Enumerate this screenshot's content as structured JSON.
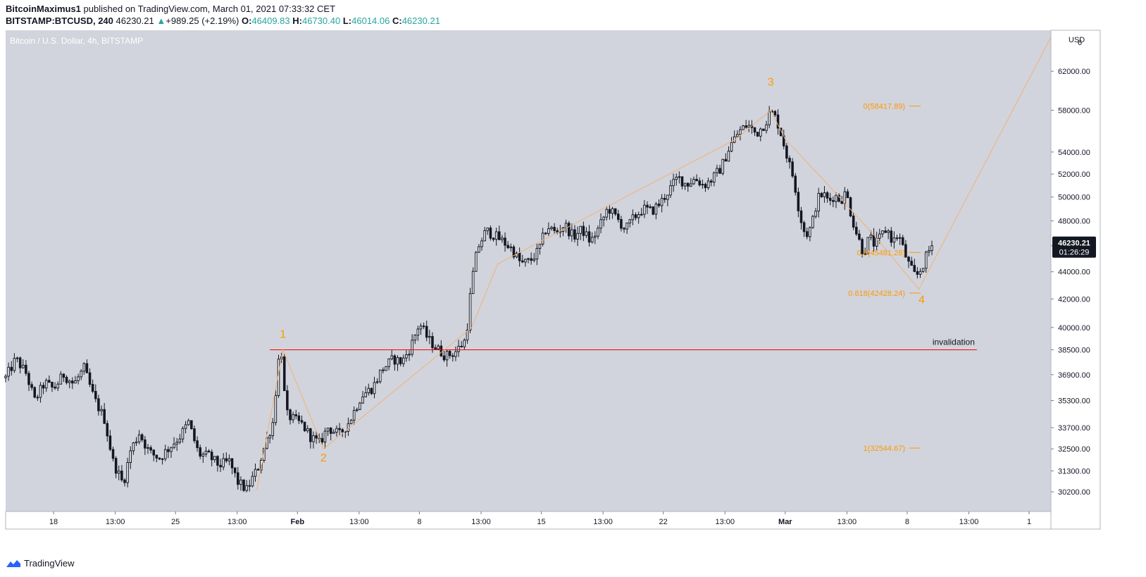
{
  "header": {
    "author": "BitcoinMaximus1",
    "published_text": "published on TradingView.com, March 01, 2021 07:33:32 CET",
    "symbol": "BITSTAMP:BTCUSD, 240",
    "last": "46230.21",
    "change": "+989.25 (+2.19%)",
    "open_label": "O:",
    "open": "46409.83",
    "high_label": "H:",
    "high": "46730.40",
    "low_label": "L:",
    "low": "46014.06",
    "close_label": "C:",
    "close": "46230.21"
  },
  "footer": {
    "brand": "TradingView",
    "icon": "tradingview-logo-icon"
  },
  "colors": {
    "plot_bg": "#d1d4dc",
    "axis_bg": "#ffffff",
    "orange": "#ff9800",
    "red": "#ff0000",
    "candle": "#131722",
    "price_tag_bg": "#131722"
  },
  "chart_data": {
    "type": "candlestick",
    "title": "Bitcoin / U.S. Dollar, 4h, BITSTAMP",
    "scale": "log",
    "currency_label": "USD",
    "ylim": [
      29200,
      66500
    ],
    "y_ticks": [
      30200,
      31300,
      32500,
      33700,
      35300,
      36900,
      38500,
      40000,
      42000,
      44000,
      46000,
      48000,
      50000,
      52000,
      54000,
      58000,
      62000
    ],
    "y_tick_labels": [
      "30200.00",
      "31300.00",
      "32500.00",
      "33700.00",
      "35300.00",
      "36900.00",
      "38500.00",
      "40000.00",
      "42000.00",
      "44000.00",
      "46000.00",
      "48000.00",
      "50000.00",
      "52000.00",
      "54000.00",
      "58000.00",
      "62000.00"
    ],
    "y_top_partial_label": "6",
    "x_start": "2021-01-15 06:00",
    "x_end": "2021-03-16 06:00",
    "x_ticks": [
      {
        "t": "2021-01-18 00:00",
        "label": "18"
      },
      {
        "t": "2021-01-21 13:00",
        "label": "13:00"
      },
      {
        "t": "2021-01-25 00:00",
        "label": "25"
      },
      {
        "t": "2021-01-28 13:00",
        "label": "13:00"
      },
      {
        "t": "2021-02-01 00:00",
        "label": "Feb"
      },
      {
        "t": "2021-02-04 13:00",
        "label": "13:00"
      },
      {
        "t": "2021-02-08 00:00",
        "label": "8"
      },
      {
        "t": "2021-02-11 13:00",
        "label": "13:00"
      },
      {
        "t": "2021-02-15 00:00",
        "label": "15"
      },
      {
        "t": "2021-02-18 13:00",
        "label": "13:00"
      },
      {
        "t": "2021-02-22 00:00",
        "label": "22"
      },
      {
        "t": "2021-02-25 13:00",
        "label": "13:00"
      },
      {
        "t": "2021-03-01 00:00",
        "label": "Mar"
      },
      {
        "t": "2021-03-04 13:00",
        "label": "13:00"
      },
      {
        "t": "2021-03-08 00:00",
        "label": "8"
      },
      {
        "t": "2021-03-11 13:00",
        "label": "13:00"
      },
      {
        "t": "2021-03-15 00:00",
        "label": "1"
      }
    ],
    "price_path": [
      [
        "2021-01-15 06:00",
        36700
      ],
      [
        "2021-01-15 20:00",
        37900
      ],
      [
        "2021-01-16 10:00",
        37000
      ],
      [
        "2021-01-16 22:00",
        35300
      ],
      [
        "2021-01-17 12:00",
        36400
      ],
      [
        "2021-01-18 00:00",
        36000
      ],
      [
        "2021-01-18 14:00",
        36900
      ],
      [
        "2021-01-19 04:00",
        36300
      ],
      [
        "2021-01-19 18:00",
        37300
      ],
      [
        "2021-01-20 08:00",
        35400
      ],
      [
        "2021-01-20 22:00",
        34200
      ],
      [
        "2021-01-21 10:00",
        31800
      ],
      [
        "2021-01-22 00:00",
        30600
      ],
      [
        "2021-01-22 10:00",
        32400
      ],
      [
        "2021-01-22 22:00",
        33400
      ],
      [
        "2021-01-23 12:00",
        32300
      ],
      [
        "2021-01-24 02:00",
        32000
      ],
      [
        "2021-01-24 16:00",
        32600
      ],
      [
        "2021-01-25 06:00",
        33200
      ],
      [
        "2021-01-25 18:00",
        34000
      ],
      [
        "2021-01-26 08:00",
        32200
      ],
      [
        "2021-01-26 22:00",
        32100
      ],
      [
        "2021-01-27 12:00",
        31600
      ],
      [
        "2021-01-28 02:00",
        31800
      ],
      [
        "2021-01-28 14:00",
        30700
      ],
      [
        "2021-01-29 02:00",
        30300
      ],
      [
        "2021-01-29 10:00",
        30900
      ],
      [
        "2021-01-29 18:00",
        31500
      ],
      [
        "2021-01-30 04:00",
        32800
      ],
      [
        "2021-01-30 14:00",
        34000
      ],
      [
        "2021-01-30 22:00",
        37800
      ],
      [
        "2021-01-31 02:00",
        38300
      ],
      [
        "2021-01-31 08:00",
        34500
      ],
      [
        "2021-01-31 18:00",
        34200
      ],
      [
        "2021-02-01 06:00",
        33900
      ],
      [
        "2021-02-01 18:00",
        33200
      ],
      [
        "2021-02-02 06:00",
        32800
      ],
      [
        "2021-02-02 18:00",
        33700
      ],
      [
        "2021-02-03 10:00",
        33300
      ],
      [
        "2021-02-04 00:00",
        34100
      ],
      [
        "2021-02-04 16:00",
        35600
      ],
      [
        "2021-02-05 08:00",
        36100
      ],
      [
        "2021-02-05 20:00",
        37200
      ],
      [
        "2021-02-06 12:00",
        37900
      ],
      [
        "2021-02-07 00:00",
        37700
      ],
      [
        "2021-02-07 12:00",
        38700
      ],
      [
        "2021-02-08 00:00",
        40300
      ],
      [
        "2021-02-08 12:00",
        39200
      ],
      [
        "2021-02-09 00:00",
        38600
      ],
      [
        "2021-02-09 12:00",
        38100
      ],
      [
        "2021-02-10 00:00",
        38300
      ],
      [
        "2021-02-10 08:00",
        38700
      ],
      [
        "2021-02-10 16:00",
        39200
      ],
      [
        "2021-02-11 00:00",
        43200
      ],
      [
        "2021-02-11 08:00",
        45800
      ],
      [
        "2021-02-11 20:00",
        47200
      ],
      [
        "2021-02-12 08:00",
        46800
      ],
      [
        "2021-02-12 20:00",
        46300
      ],
      [
        "2021-02-13 08:00",
        45700
      ],
      [
        "2021-02-13 20:00",
        44600
      ],
      [
        "2021-02-14 08:00",
        44800
      ],
      [
        "2021-02-14 20:00",
        45600
      ],
      [
        "2021-02-15 08:00",
        47600
      ],
      [
        "2021-02-15 20:00",
        47000
      ],
      [
        "2021-02-16 08:00",
        47700
      ],
      [
        "2021-02-16 20:00",
        46700
      ],
      [
        "2021-02-17 08:00",
        47300
      ],
      [
        "2021-02-17 20:00",
        46300
      ],
      [
        "2021-02-18 08:00",
        47500
      ],
      [
        "2021-02-18 20:00",
        49100
      ],
      [
        "2021-02-19 08:00",
        48200
      ],
      [
        "2021-02-19 20:00",
        47300
      ],
      [
        "2021-02-20 08:00",
        48300
      ],
      [
        "2021-02-20 20:00",
        49000
      ],
      [
        "2021-02-21 08:00",
        48800
      ],
      [
        "2021-02-21 20:00",
        49500
      ],
      [
        "2021-02-22 08:00",
        50600
      ],
      [
        "2021-02-22 20:00",
        51700
      ],
      [
        "2021-02-23 08:00",
        51100
      ],
      [
        "2021-02-23 20:00",
        51600
      ],
      [
        "2021-02-24 08:00",
        51000
      ],
      [
        "2021-02-24 20:00",
        51600
      ],
      [
        "2021-02-25 08:00",
        52600
      ],
      [
        "2021-02-25 20:00",
        54600
      ],
      [
        "2021-02-26 08:00",
        55900
      ],
      [
        "2021-02-26 20:00",
        56600
      ],
      [
        "2021-02-27 08:00",
        55700
      ],
      [
        "2021-02-27 20:00",
        56700
      ],
      [
        "2021-02-28 04:00",
        57900
      ],
      [
        "2021-02-28 12:00",
        57100
      ],
      [
        "2021-02-28 20:00",
        55300
      ],
      [
        "2021-03-01 04:00",
        53200
      ],
      [
        "2021-03-01 12:00",
        51500
      ],
      [
        "2021-03-01 20:00",
        48500
      ],
      [
        "2021-03-02 04:00",
        46800
      ],
      [
        "2021-03-02 12:00",
        47500
      ],
      [
        "2021-03-02 20:00",
        49800
      ],
      [
        "2021-03-03 04:00",
        50300
      ],
      [
        "2021-03-03 12:00",
        49600
      ],
      [
        "2021-03-03 20:00",
        50200
      ],
      [
        "2021-03-04 04:00",
        49700
      ],
      [
        "2021-03-04 12:00",
        50400
      ],
      [
        "2021-03-04 20:00",
        48200
      ],
      [
        "2021-03-05 04:00",
        46700
      ],
      [
        "2021-03-05 12:00",
        45400
      ],
      [
        "2021-03-05 20:00",
        46700
      ],
      [
        "2021-03-06 04:00",
        46000
      ],
      [
        "2021-03-06 12:00",
        46800
      ],
      [
        "2021-03-06 20:00",
        47400
      ],
      [
        "2021-03-07 04:00",
        46300
      ],
      [
        "2021-03-07 12:00",
        46900
      ],
      [
        "2021-03-07 20:00",
        45500
      ],
      [
        "2021-03-08 04:00",
        44300
      ],
      [
        "2021-03-08 12:00",
        43600
      ],
      [
        "2021-03-08 20:00",
        44300
      ],
      [
        "2021-03-09 04:00",
        45400
      ],
      [
        "2021-03-09 12:00",
        46230
      ]
    ],
    "last_price": {
      "value": 46230.21,
      "label": "46230.21",
      "countdown": "01:26:29"
    },
    "wave_labels": [
      {
        "text": "1",
        "t": "2021-01-31 04:00",
        "price": 39300
      },
      {
        "text": "2",
        "t": "2021-02-02 12:00",
        "price": 31800
      },
      {
        "text": "3",
        "t": "2021-02-28 04:00",
        "price": 60500
      },
      {
        "text": "4",
        "t": "2021-03-08 20:00",
        "price": 41700
      }
    ],
    "wave_path": [
      [
        "2021-01-29 16:00",
        30300
      ],
      [
        "2021-01-31 04:00",
        38500
      ],
      [
        "2021-02-02 12:00",
        32500
      ],
      [
        "2021-02-11 00:00",
        40000
      ],
      [
        "2021-02-12 12:00",
        44600
      ],
      [
        "2021-02-26 04:00",
        55200
      ],
      [
        "2021-02-28 04:00",
        58000
      ],
      [
        "2021-03-01 00:00",
        55200
      ],
      [
        "2021-03-03 06:00",
        51400
      ],
      [
        "2021-03-06 00:00",
        47000
      ],
      [
        "2021-03-08 16:00",
        42700
      ],
      [
        "2021-03-16 06:00",
        65700
      ]
    ],
    "invalidation": {
      "label": "invalidation",
      "price": 38500,
      "t_start": "2021-01-30 10:00",
      "t_end": "2021-03-12 00:00"
    },
    "fib_levels": [
      {
        "label": "0(58417.89)",
        "price": 58417.89
      },
      {
        "label": "0.5(45481.28)",
        "price": 45481.28
      },
      {
        "label": "0.618(42428.24)",
        "price": 42428.24
      },
      {
        "label": "1(32544.67)",
        "price": 32544.67
      }
    ]
  }
}
